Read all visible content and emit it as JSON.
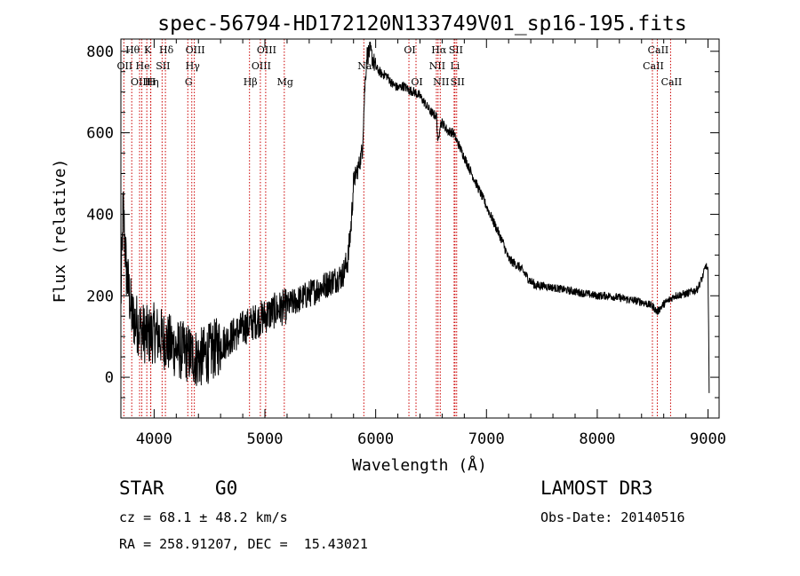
{
  "chart_data": {
    "type": "line",
    "title": "spec-56794-HD172120N133749V01_sp16-195.fits",
    "xlabel": "Wavelength (Å)",
    "ylabel": "Flux (relative)",
    "xlim": [
      3700,
      9100
    ],
    "ylim": [
      -100,
      830
    ],
    "x_ticks": [
      4000,
      5000,
      6000,
      7000,
      8000,
      9000
    ],
    "y_ticks": [
      0,
      200,
      400,
      600,
      800
    ],
    "x_tick_labels": [
      "4000",
      "5000",
      "6000",
      "7000",
      "8000",
      "9000"
    ],
    "y_tick_labels": [
      "0",
      "200",
      "400",
      "600",
      "800"
    ],
    "spectrum_envelope": {
      "x": [
        3700,
        3720,
        3750,
        3800,
        3850,
        3900,
        3950,
        4000,
        4100,
        4200,
        4300,
        4400,
        4500,
        4600,
        4700,
        4800,
        4900,
        5000,
        5100,
        5200,
        5300,
        5400,
        5500,
        5600,
        5700,
        5750,
        5780,
        5800,
        5850,
        5880,
        5900,
        5920,
        5950,
        6000,
        6050,
        6100,
        6150,
        6200,
        6250,
        6300,
        6350,
        6400,
        6450,
        6500,
        6550,
        6563,
        6580,
        6600,
        6650,
        6700,
        6750,
        6800,
        6850,
        6900,
        6950,
        7000,
        7050,
        7100,
        7150,
        7200,
        7300,
        7400,
        7450,
        7500,
        7600,
        7700,
        7800,
        7900,
        8000,
        8100,
        8200,
        8300,
        8400,
        8500,
        8540,
        8600,
        8700,
        8800,
        8900,
        8950,
        8980,
        9000,
        9010
      ],
      "y": [
        180,
        420,
        260,
        150,
        130,
        110,
        100,
        110,
        90,
        70,
        60,
        45,
        60,
        80,
        100,
        120,
        135,
        150,
        165,
        175,
        190,
        205,
        220,
        235,
        250,
        290,
        380,
        480,
        520,
        560,
        700,
        790,
        800,
        760,
        745,
        740,
        720,
        710,
        715,
        705,
        700,
        690,
        670,
        650,
        640,
        570,
        620,
        625,
        605,
        600,
        570,
        540,
        510,
        480,
        450,
        420,
        390,
        360,
        330,
        290,
        270,
        235,
        225,
        225,
        220,
        215,
        210,
        205,
        200,
        200,
        195,
        190,
        185,
        175,
        160,
        180,
        200,
        205,
        215,
        245,
        275,
        260,
        -30
      ]
    },
    "emission_lines": [
      {
        "label": "OII",
        "wavelength": 3727,
        "row": 1
      },
      {
        "label": "Hθ",
        "wavelength": 3798,
        "row": 0
      },
      {
        "label": "OIII",
        "wavelength": 3869,
        "row": 2
      },
      {
        "label": "He",
        "wavelength": 3889,
        "row": 1
      },
      {
        "label": "K",
        "wavelength": 3934,
        "row": 0
      },
      {
        "label": "Hη",
        "wavelength": 3970,
        "row": 2
      },
      {
        "label": "H",
        "wavelength": 3968,
        "row": 2
      },
      {
        "label": "SII",
        "wavelength": 4072,
        "row": 1
      },
      {
        "label": "Hδ",
        "wavelength": 4102,
        "row": 0
      },
      {
        "label": "G",
        "wavelength": 4304,
        "row": 2
      },
      {
        "label": "Hγ",
        "wavelength": 4340,
        "row": 1
      },
      {
        "label": "OIII",
        "wavelength": 4363,
        "row": 0
      },
      {
        "label": "Hβ",
        "wavelength": 4861,
        "row": 2
      },
      {
        "label": "OIII",
        "wavelength": 4959,
        "row": 1
      },
      {
        "label": "OIII",
        "wavelength": 5007,
        "row": 0
      },
      {
        "label": "Mg",
        "wavelength": 5175,
        "row": 2
      },
      {
        "label": "Na",
        "wavelength": 5893,
        "row": 1
      },
      {
        "label": "OI",
        "wavelength": 6300,
        "row": 0
      },
      {
        "label": "OI",
        "wavelength": 6364,
        "row": 2
      },
      {
        "label": "NII",
        "wavelength": 6548,
        "row": 1
      },
      {
        "label": "Hα",
        "wavelength": 6563,
        "row": 0
      },
      {
        "label": "NII",
        "wavelength": 6583,
        "row": 2
      },
      {
        "label": "Li",
        "wavelength": 6708,
        "row": 1
      },
      {
        "label": "SII",
        "wavelength": 6716,
        "row": 0
      },
      {
        "label": "SII",
        "wavelength": 6731,
        "row": 2
      },
      {
        "label": "CaII",
        "wavelength": 8498,
        "row": 1
      },
      {
        "label": "CaII",
        "wavelength": 8542,
        "row": 0
      },
      {
        "label": "CaII",
        "wavelength": 8662,
        "row": 2
      }
    ],
    "colors": {
      "spectrum": "#000000",
      "lines": "#cc0000",
      "axes": "#000000"
    }
  },
  "info": {
    "class_label": "STAR",
    "subclass": "G0",
    "survey": "LAMOST DR3",
    "cz": "cz = 68.1 ± 48.2 km/s",
    "obs_date": "Obs-Date: 20140516",
    "coords": "RA = 258.91207, DEC =  15.43021"
  }
}
